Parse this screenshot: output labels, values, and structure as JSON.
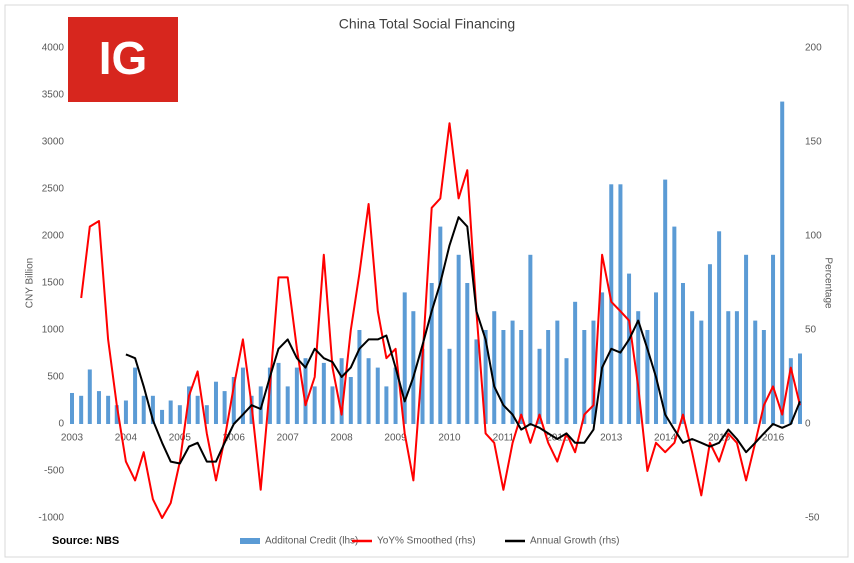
{
  "chart_data": {
    "type": "combo",
    "title": "China Total Social Financing",
    "logo": "IG",
    "annotations": [
      "Source: NBS"
    ],
    "y_label": "CNY Billion",
    "y2_label": "Percentage",
    "legend": "bottom",
    "grid": false,
    "xlim": [
      2003,
      2016.5
    ],
    "xticks": [
      2003,
      2004,
      2005,
      2006,
      2007,
      2008,
      2009,
      2010,
      2011,
      2012,
      2013,
      2014,
      2015,
      2016
    ],
    "ylim": [
      -1000,
      4000
    ],
    "yticks": [
      -1000,
      -500,
      0,
      500,
      1000,
      1500,
      2000,
      2500,
      3000,
      3500,
      4000
    ],
    "y2lim": [
      -50,
      200
    ],
    "y2ticks": [
      -50,
      0,
      50,
      100,
      150,
      200
    ],
    "x": [
      2003.0,
      2003.17,
      2003.33,
      2003.5,
      2003.67,
      2003.83,
      2004.0,
      2004.17,
      2004.33,
      2004.5,
      2004.67,
      2004.83,
      2005.0,
      2005.17,
      2005.33,
      2005.5,
      2005.67,
      2005.83,
      2006.0,
      2006.17,
      2006.33,
      2006.5,
      2006.67,
      2006.83,
      2007.0,
      2007.17,
      2007.33,
      2007.5,
      2007.67,
      2007.83,
      2008.0,
      2008.17,
      2008.33,
      2008.5,
      2008.67,
      2008.83,
      2009.0,
      2009.17,
      2009.33,
      2009.5,
      2009.67,
      2009.83,
      2010.0,
      2010.17,
      2010.33,
      2010.5,
      2010.67,
      2010.83,
      2011.0,
      2011.17,
      2011.33,
      2011.5,
      2011.67,
      2011.83,
      2012.0,
      2012.17,
      2012.33,
      2012.5,
      2012.67,
      2012.83,
      2013.0,
      2013.17,
      2013.33,
      2013.5,
      2013.67,
      2013.83,
      2014.0,
      2014.17,
      2014.33,
      2014.5,
      2014.67,
      2014.83,
      2015.0,
      2015.17,
      2015.33,
      2015.5,
      2015.67,
      2015.83,
      2016.0,
      2016.17,
      2016.33,
      2016.5
    ],
    "series": [
      {
        "name": "Additonal Credit (lhs)",
        "type": "bar",
        "color": "#5b9bd5",
        "values": [
          330,
          300,
          580,
          350,
          300,
          200,
          250,
          600,
          300,
          300,
          150,
          250,
          200,
          400,
          300,
          200,
          450,
          350,
          500,
          600,
          300,
          400,
          600,
          650,
          400,
          600,
          700,
          400,
          650,
          400,
          700,
          500,
          1000,
          700,
          600,
          400,
          600,
          1400,
          1200,
          800,
          1500,
          2100,
          800,
          1800,
          1500,
          900,
          1000,
          1200,
          1000,
          1100,
          1000,
          1800,
          800,
          1000,
          1100,
          700,
          1300,
          1000,
          1100,
          1400,
          2550,
          2550,
          1600,
          1200,
          1000,
          1400,
          2600,
          2100,
          1500,
          1200,
          1100,
          1700,
          2050,
          1200,
          1200,
          1800,
          1100,
          1000,
          1800,
          3430,
          700,
          750
        ]
      },
      {
        "name": "YoY% Smoothed (rhs)",
        "type": "line",
        "axis": "y2",
        "color": "#ff0000",
        "values": [
          null,
          67,
          105,
          108,
          45,
          10,
          -20,
          -30,
          -15,
          -40,
          -50,
          -42,
          -20,
          15,
          28,
          -5,
          -30,
          -8,
          20,
          45,
          10,
          -35,
          20,
          78,
          78,
          40,
          10,
          25,
          90,
          30,
          5,
          50,
          80,
          117,
          60,
          35,
          40,
          -5,
          -30,
          35,
          115,
          120,
          160,
          120,
          135,
          60,
          -5,
          -10,
          -35,
          -10,
          5,
          -10,
          5,
          -10,
          -20,
          -5,
          -15,
          5,
          10,
          90,
          65,
          60,
          55,
          20,
          -25,
          -10,
          -15,
          -10,
          5,
          -15,
          -38,
          -10,
          -20,
          -5,
          -10,
          -30,
          -10,
          10,
          20,
          5,
          30,
          10
        ]
      },
      {
        "name": "Annual Growth (rhs)",
        "type": "line",
        "axis": "y2",
        "color": "#000000",
        "values": [
          null,
          null,
          null,
          null,
          null,
          null,
          37,
          35,
          20,
          2,
          -10,
          -20,
          -21,
          -12,
          -10,
          -20,
          -20,
          -10,
          0,
          5,
          10,
          8,
          25,
          40,
          45,
          35,
          30,
          40,
          35,
          33,
          25,
          30,
          40,
          45,
          45,
          47,
          30,
          12,
          25,
          42,
          60,
          75,
          95,
          110,
          105,
          60,
          45,
          20,
          10,
          5,
          -3,
          0,
          -2,
          -5,
          -8,
          -5,
          -10,
          -10,
          -3,
          30,
          40,
          38,
          45,
          55,
          40,
          25,
          5,
          -3,
          -10,
          -8,
          -10,
          -12,
          -10,
          -3,
          -8,
          -15,
          -10,
          -5,
          0,
          -2,
          0,
          12
        ]
      }
    ]
  }
}
